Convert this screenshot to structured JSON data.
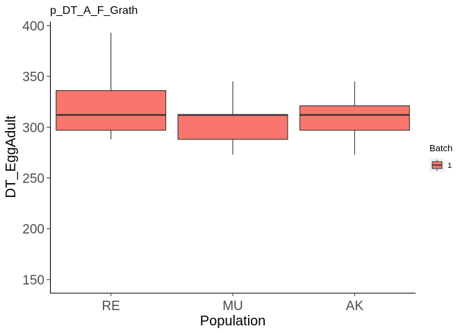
{
  "chart_data": {
    "type": "boxplot",
    "title": "p_DT_A_F_Grath",
    "xlabel": "Population",
    "ylabel": "DT_EggAdult",
    "categories": [
      "RE",
      "MU",
      "AK"
    ],
    "yticks": [
      150,
      200,
      250,
      300,
      350,
      400
    ],
    "ylim": [
      137,
      404
    ],
    "grid": false,
    "legend": {
      "title": "Batch",
      "entries": [
        "1"
      ],
      "placement": "right"
    },
    "series": [
      {
        "name": "1",
        "color": "#F8766D",
        "boxes": [
          {
            "category": "RE",
            "min": 288,
            "q1": 297,
            "median": 312,
            "q3": 336,
            "max": 393
          },
          {
            "category": "MU",
            "min": 273,
            "q1": 288,
            "median": 312,
            "q3": 312.5,
            "max": 345
          },
          {
            "category": "AK",
            "min": 273,
            "q1": 297,
            "median": 312,
            "q3": 321,
            "max": 345
          }
        ]
      }
    ]
  }
}
